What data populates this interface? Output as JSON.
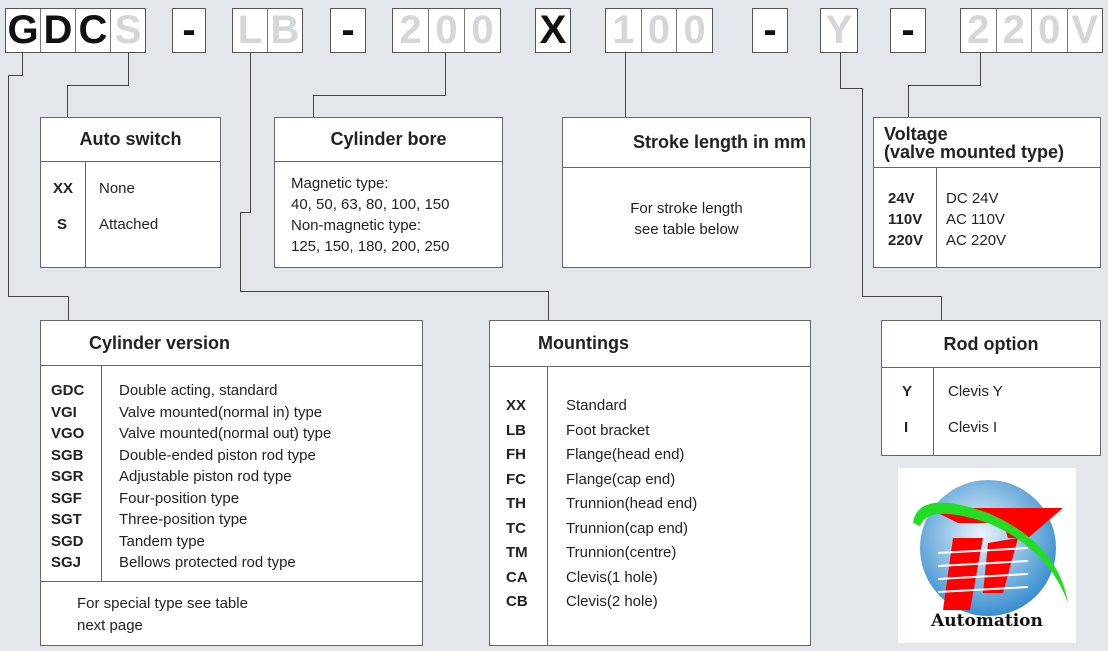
{
  "code": {
    "groups": [
      {
        "chars": [
          {
            "c": "G",
            "active": true
          },
          {
            "c": "D",
            "active": true
          },
          {
            "c": "C",
            "active": true
          },
          {
            "c": "S",
            "active": false
          }
        ]
      },
      {
        "chars": [
          {
            "c": "-",
            "active": true
          }
        ]
      },
      {
        "chars": [
          {
            "c": "L",
            "active": false
          },
          {
            "c": "B",
            "active": false
          }
        ]
      },
      {
        "chars": [
          {
            "c": "-",
            "active": true
          }
        ]
      },
      {
        "chars": [
          {
            "c": "2",
            "active": false
          },
          {
            "c": "0",
            "active": false
          },
          {
            "c": "0",
            "active": false
          }
        ]
      },
      {
        "chars": [
          {
            "c": "X",
            "active": true
          }
        ]
      },
      {
        "chars": [
          {
            "c": "1",
            "active": false
          },
          {
            "c": "0",
            "active": false
          },
          {
            "c": "0",
            "active": false
          }
        ]
      },
      {
        "chars": [
          {
            "c": "-",
            "active": true
          }
        ]
      },
      {
        "chars": [
          {
            "c": "Y",
            "active": false
          }
        ]
      },
      {
        "chars": [
          {
            "c": "-",
            "active": true
          }
        ]
      },
      {
        "chars": [
          {
            "c": "2",
            "active": false
          },
          {
            "c": "2",
            "active": false
          },
          {
            "c": "0",
            "active": false
          },
          {
            "c": "V",
            "active": false
          }
        ]
      }
    ]
  },
  "auto_switch": {
    "title": "Auto switch",
    "rows": [
      {
        "code": "XX",
        "desc": "None"
      },
      {
        "code": "S",
        "desc": "Attached"
      }
    ]
  },
  "cylinder_bore": {
    "title": "Cylinder bore",
    "lines": [
      "Magnetic type:",
      "40, 50, 63, 80, 100, 150",
      "Non-magnetic type:",
      "125, 150, 180, 200, 250"
    ]
  },
  "stroke": {
    "title": "Stroke length in mm",
    "lines": [
      "For stroke length",
      "see table below"
    ]
  },
  "voltage": {
    "title_line1": "Voltage",
    "title_line2": "(valve mounted type)",
    "rows": [
      {
        "code": "24V",
        "desc": "DC 24V"
      },
      {
        "code": "110V",
        "desc": "AC 110V"
      },
      {
        "code": "220V",
        "desc": "AC 220V"
      }
    ]
  },
  "cylinder_version": {
    "title": "Cylinder version",
    "rows": [
      {
        "code": "GDC",
        "desc": "Double acting, standard"
      },
      {
        "code": "VGI",
        "desc": "Valve mounted(normal in) type"
      },
      {
        "code": "VGO",
        "desc": "Valve mounted(normal out) type"
      },
      {
        "code": "SGB",
        "desc": "Double-ended piston rod type"
      },
      {
        "code": "SGR",
        "desc": "Adjustable piston rod type"
      },
      {
        "code": "SGF",
        "desc": "Four-position type"
      },
      {
        "code": "SGT",
        "desc": "Three-position type"
      },
      {
        "code": "SGD",
        "desc": "Tandem type"
      },
      {
        "code": "SGJ",
        "desc": "Bellows protected rod type"
      }
    ],
    "footer_line1": "For special type see table",
    "footer_line2": "next page"
  },
  "mountings": {
    "title": "Mountings",
    "rows": [
      {
        "code": "XX",
        "desc": "Standard"
      },
      {
        "code": "LB",
        "desc": "Foot bracket"
      },
      {
        "code": "FH",
        "desc": "Flange(head end)"
      },
      {
        "code": "FC",
        "desc": "Flange(cap end)"
      },
      {
        "code": "TH",
        "desc": "Trunnion(head end)"
      },
      {
        "code": "TC",
        "desc": "Trunnion(cap end)"
      },
      {
        "code": "TM",
        "desc": "Trunnion(centre)"
      },
      {
        "code": "CA",
        "desc": "Clevis(1 hole)"
      },
      {
        "code": "CB",
        "desc": "Clevis(2 hole)"
      }
    ]
  },
  "rod_option": {
    "title": "Rod option",
    "rows": [
      {
        "code": "Y",
        "desc": "Clevis Y"
      },
      {
        "code": "I",
        "desc": "Clevis I"
      }
    ]
  },
  "logo": {
    "text": "Automation",
    "colors": {
      "red": "#ff0000",
      "green": "#22dd22",
      "blue": "#3a8fd0"
    }
  }
}
